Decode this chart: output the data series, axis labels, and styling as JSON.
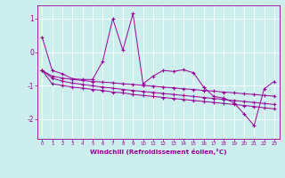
{
  "xlabel": "Windchill (Refroidissement éolien,°C)",
  "background_color": "#cceeed",
  "line_color": "#990099",
  "x_ticks": [
    0,
    1,
    2,
    3,
    4,
    5,
    6,
    7,
    8,
    9,
    10,
    11,
    12,
    13,
    14,
    15,
    16,
    17,
    18,
    19,
    20,
    21,
    22,
    23
  ],
  "ylim": [
    -2.6,
    1.4
  ],
  "xlim": [
    -0.5,
    23.5
  ],
  "yticks": [
    -2,
    -1,
    0,
    1
  ],
  "series": {
    "line1": [
      0.45,
      -0.55,
      -0.65,
      -0.8,
      -0.82,
      -0.82,
      -0.28,
      1.0,
      0.06,
      1.15,
      -0.95,
      -0.72,
      -0.55,
      -0.58,
      -0.53,
      -0.62,
      -1.05,
      -1.33,
      -1.38,
      -1.52,
      -1.85,
      -2.2,
      -1.1,
      -0.88
    ],
    "line2": [
      -0.55,
      -0.72,
      -0.78,
      -0.82,
      -0.85,
      -0.88,
      -0.9,
      -0.92,
      -0.95,
      -0.97,
      -1.0,
      -1.02,
      -1.05,
      -1.07,
      -1.1,
      -1.12,
      -1.15,
      -1.17,
      -1.2,
      -1.22,
      -1.25,
      -1.27,
      -1.3,
      -1.32
    ],
    "line3": [
      -0.55,
      -0.78,
      -0.87,
      -0.93,
      -0.97,
      -1.01,
      -1.05,
      -1.08,
      -1.12,
      -1.15,
      -1.18,
      -1.21,
      -1.24,
      -1.27,
      -1.3,
      -1.33,
      -1.36,
      -1.39,
      -1.42,
      -1.45,
      -1.48,
      -1.51,
      -1.54,
      -1.57
    ],
    "line4": [
      -0.55,
      -0.95,
      -1.0,
      -1.05,
      -1.08,
      -1.12,
      -1.15,
      -1.2,
      -1.22,
      -1.27,
      -1.3,
      -1.33,
      -1.36,
      -1.39,
      -1.42,
      -1.45,
      -1.48,
      -1.51,
      -1.54,
      -1.57,
      -1.6,
      -1.63,
      -1.67,
      -1.7
    ]
  }
}
